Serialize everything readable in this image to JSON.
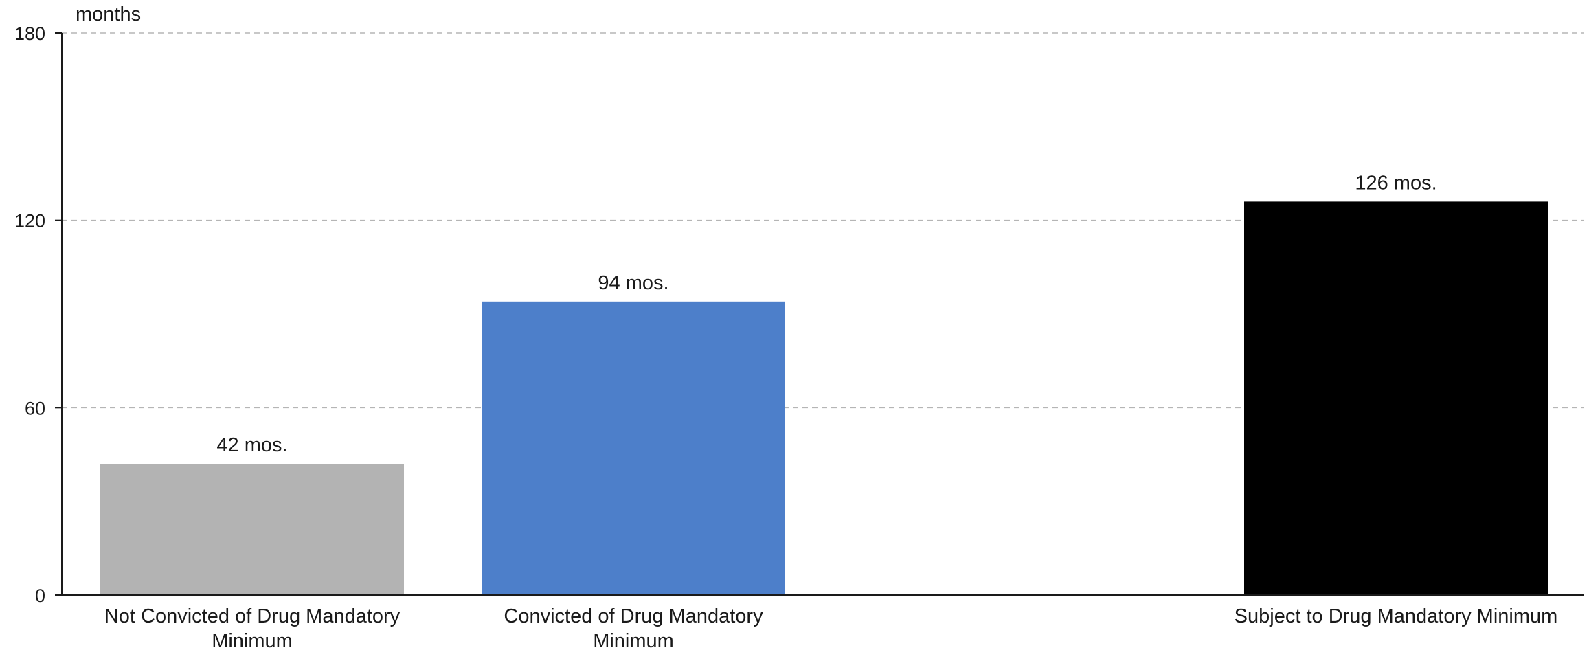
{
  "chart_data": {
    "type": "bar",
    "ylabel": "months",
    "ylim": [
      0,
      180
    ],
    "yticks": [
      0,
      60,
      120,
      180
    ],
    "grid": true,
    "categories": [
      [
        "Not Convicted of Drug Mandatory",
        "Minimum"
      ],
      [
        "Convicted of Drug Mandatory",
        "Minimum"
      ],
      [
        "Subject to Drug Mandatory Minimum"
      ]
    ],
    "values": [
      42,
      94,
      126
    ],
    "data_labels": [
      "42 mos.",
      "94 mos.",
      "126 mos."
    ],
    "colors": [
      "#b3b3b3",
      "#4d7fca",
      "#000000"
    ]
  }
}
